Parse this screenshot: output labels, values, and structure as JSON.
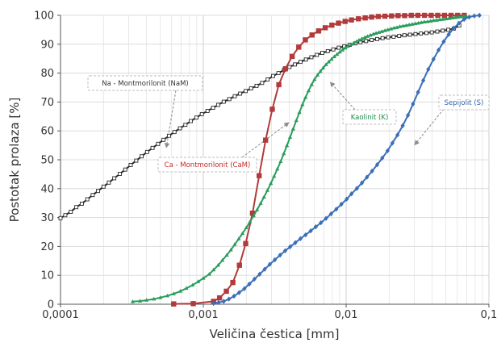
{
  "chart_data": {
    "type": "line",
    "x_scale": "log",
    "xlim": [
      0.0001,
      0.1
    ],
    "ylim": [
      0,
      100
    ],
    "grid": true,
    "xlabel": "Veličina čestica [mm]",
    "ylabel": "Postotak prolaza [%]",
    "x_ticks": [
      "0,0001",
      "0,001",
      "0,01",
      "0,1"
    ],
    "y_ticks": [
      "0",
      "10",
      "20",
      "30",
      "40",
      "50",
      "60",
      "70",
      "80",
      "90",
      "100"
    ],
    "series": [
      {
        "name": "Na - Montmorilonit (NaM)",
        "color": "#2b2b2b",
        "marker": "square-open",
        "x": [
          0.0001,
          0.000108,
          0.000118,
          0.000129,
          0.000141,
          0.000154,
          0.000168,
          0.000183,
          0.0002,
          0.000218,
          0.000238,
          0.00026,
          0.000284,
          0.00031,
          0.000339,
          0.00037,
          0.000404,
          0.000441,
          0.000482,
          0.000526,
          0.000575,
          0.000628,
          0.000686,
          0.000749,
          0.000818,
          0.000894,
          0.000977,
          0.00107,
          0.00117,
          0.00127,
          0.00139,
          0.00152,
          0.00166,
          0.00181,
          0.00198,
          0.00216,
          0.00236,
          0.00258,
          0.00282,
          0.00308,
          0.00336,
          0.00367,
          0.00401,
          0.00438,
          0.00479,
          0.00523,
          0.00571,
          0.00624,
          0.00681,
          0.00744,
          0.00813,
          0.00888,
          0.0097,
          0.0106,
          0.0116,
          0.0126,
          0.0138,
          0.0151,
          0.0165,
          0.018,
          0.0197,
          0.0215,
          0.0235,
          0.0256,
          0.028,
          0.0306,
          0.0334,
          0.0365,
          0.0398,
          0.0435,
          0.0475,
          0.0519,
          0.0567,
          0.062
        ],
        "values": [
          29.8,
          30.8,
          32.0,
          33.6,
          34.8,
          36.3,
          37.8,
          39.2,
          40.7,
          42.1,
          43.6,
          45.1,
          46.6,
          48.2,
          49.7,
          51.2,
          52.7,
          54.1,
          55.5,
          56.9,
          58.3,
          59.6,
          60.9,
          62.1,
          63.4,
          64.6,
          65.8,
          66.9,
          68.0,
          69.0,
          70.1,
          71.0,
          72.0,
          72.9,
          73.8,
          74.7,
          75.6,
          76.6,
          77.8,
          79.0,
          80.0,
          81.1,
          82.1,
          83.0,
          83.9,
          84.7,
          85.5,
          86.3,
          87.0,
          87.6,
          88.2,
          88.8,
          89.3,
          89.8,
          90.3,
          90.7,
          91.1,
          91.5,
          91.8,
          92.1,
          92.4,
          92.6,
          92.9,
          93.1,
          93.3,
          93.5,
          93.7,
          93.9,
          94.1,
          94.4,
          94.7,
          95.0,
          95.4,
          96.5
        ]
      },
      {
        "name": "Ca - Montmorilonit (CaM)",
        "color": "#b23a3a",
        "marker": "square",
        "x": [
          0.00062,
          0.00085,
          0.00118,
          0.0013,
          0.00145,
          0.00161,
          0.00179,
          0.00198,
          0.00221,
          0.00246,
          0.00273,
          0.00304,
          0.00338,
          0.00376,
          0.00419,
          0.00466,
          0.00518,
          0.00577,
          0.00642,
          0.00714,
          0.00795,
          0.00884,
          0.00984,
          0.0109,
          0.0122,
          0.0136,
          0.0151,
          0.0168,
          0.0187,
          0.0208,
          0.0231,
          0.0257,
          0.0286,
          0.0318,
          0.0354,
          0.0394,
          0.0438,
          0.0488,
          0.0543,
          0.0604,
          0.0672
        ],
        "values": [
          0.1,
          0.2,
          1.0,
          2.2,
          4.5,
          7.5,
          13.5,
          21.0,
          31.5,
          44.5,
          56.8,
          67.5,
          76.0,
          81.5,
          85.8,
          89.0,
          91.5,
          93.2,
          94.6,
          95.7,
          96.6,
          97.3,
          97.9,
          98.4,
          98.8,
          99.1,
          99.4,
          99.6,
          99.7,
          99.8,
          99.9,
          99.9,
          100,
          100,
          100,
          100,
          100,
          100,
          100,
          100,
          100
        ]
      },
      {
        "name": "Kaolinit (K)",
        "color": "#2a9d5c",
        "marker": "triangle",
        "x": [
          0.00032,
          0.00036,
          0.0004,
          0.00045,
          0.0005,
          0.00056,
          0.00062,
          0.00069,
          0.00076,
          0.00084,
          0.00092,
          0.001,
          0.0011,
          0.00118,
          0.00127,
          0.00136,
          0.00146,
          0.00156,
          0.00166,
          0.00177,
          0.00188,
          0.002,
          0.00212,
          0.00225,
          0.00238,
          0.00252,
          0.00266,
          0.00281,
          0.00297,
          0.00313,
          0.0033,
          0.00348,
          0.00366,
          0.00385,
          0.00405,
          0.00426,
          0.00448,
          0.00471,
          0.00495,
          0.0052,
          0.00546,
          0.00573,
          0.00601,
          0.0063,
          0.0066,
          0.0069,
          0.00722,
          0.00755,
          0.0079,
          0.00826,
          0.00864,
          0.00903,
          0.00944,
          0.00987,
          0.0103,
          0.0108,
          0.0113,
          0.0118,
          0.0123,
          0.0129,
          0.0135,
          0.0141,
          0.0148,
          0.0155,
          0.0162,
          0.017,
          0.0178,
          0.0187,
          0.0196,
          0.0206,
          0.0216,
          0.0227,
          0.0238,
          0.025,
          0.0263,
          0.0276,
          0.029,
          0.0305,
          0.032,
          0.0336,
          0.0353,
          0.0371,
          0.039,
          0.041,
          0.0431,
          0.0453,
          0.0476,
          0.05,
          0.0525,
          0.0551,
          0.0578,
          0.0605,
          0.0633,
          0.0662,
          0.0692
        ],
        "values": [
          0.9,
          1.1,
          1.4,
          1.8,
          2.3,
          2.9,
          3.6,
          4.5,
          5.5,
          6.6,
          7.8,
          9.0,
          10.4,
          11.9,
          13.5,
          15.2,
          17.0,
          18.8,
          20.7,
          22.6,
          24.5,
          26.5,
          28.5,
          30.6,
          32.7,
          34.9,
          37.1,
          39.4,
          41.8,
          44.3,
          46.8,
          49.4,
          52.1,
          54.9,
          57.8,
          60.7,
          63.6,
          66.4,
          69.1,
          71.6,
          73.9,
          76.0,
          77.8,
          79.3,
          80.6,
          81.8,
          82.9,
          83.9,
          84.8,
          85.7,
          86.5,
          87.3,
          88.0,
          88.7,
          89.3,
          89.9,
          90.4,
          90.9,
          91.4,
          91.9,
          92.3,
          92.7,
          93.1,
          93.5,
          93.8,
          94.1,
          94.4,
          94.7,
          95.0,
          95.3,
          95.6,
          95.8,
          96.1,
          96.3,
          96.5,
          96.7,
          96.9,
          97.1,
          97.3,
          97.5,
          97.7,
          97.8,
          98.0,
          98.2,
          98.3,
          98.5,
          98.6,
          98.8,
          98.9,
          99.1,
          99.2,
          99.4,
          99.5,
          99.7,
          99.8
        ]
      },
      {
        "name": "Sepijolit (S)",
        "color": "#3b6fb6",
        "marker": "diamond",
        "x": [
          0.00118,
          0.00128,
          0.00139,
          0.00151,
          0.00164,
          0.00178,
          0.00194,
          0.0021,
          0.00228,
          0.00248,
          0.00269,
          0.00292,
          0.00317,
          0.00345,
          0.00374,
          0.00406,
          0.00441,
          0.00479,
          0.0052,
          0.00565,
          0.00613,
          0.00666,
          0.00723,
          0.00785,
          0.00853,
          0.00926,
          0.0101,
          0.0109,
          0.0119,
          0.0129,
          0.014,
          0.0152,
          0.0165,
          0.0179,
          0.0195,
          0.0211,
          0.0229,
          0.0249,
          0.0271,
          0.0294,
          0.0319,
          0.0347,
          0.0376,
          0.0409,
          0.0444,
          0.0482,
          0.0523,
          0.0568,
          0.0617,
          0.067,
          0.0728,
          0.079,
          0.0858
        ],
        "values": [
          0.3,
          0.6,
          1.0,
          1.8,
          2.8,
          4.0,
          5.4,
          7.0,
          8.7,
          10.4,
          12.1,
          13.8,
          15.4,
          17.0,
          18.5,
          19.9,
          21.3,
          22.7,
          24.0,
          25.4,
          26.8,
          28.2,
          29.7,
          31.3,
          32.9,
          34.6,
          36.4,
          38.2,
          40.1,
          42.0,
          44.0,
          46.1,
          48.3,
          50.6,
          53.1,
          55.8,
          58.6,
          61.8,
          65.4,
          69.3,
          73.4,
          77.5,
          81.3,
          84.8,
          88.0,
          90.9,
          93.4,
          95.6,
          97.3,
          98.6,
          99.4,
          99.8,
          100
        ]
      }
    ],
    "annotations": [
      {
        "text": "Na - Montmorilonit (NaM)",
        "target_series": "Na - Montmorilonit (NaM)",
        "color": "#333333"
      },
      {
        "text": "Ca - Montmorilonit (CaM)",
        "target_series": "Ca - Montmorilonit (CaM)",
        "color": "#c62828"
      },
      {
        "text": "Kaolinit (K)",
        "target_series": "Kaolinit (K)",
        "color": "#1e8a4c"
      },
      {
        "text": "Sepijolit (S)",
        "target_series": "Sepijolit (S)",
        "color": "#2f5fa8"
      }
    ]
  }
}
